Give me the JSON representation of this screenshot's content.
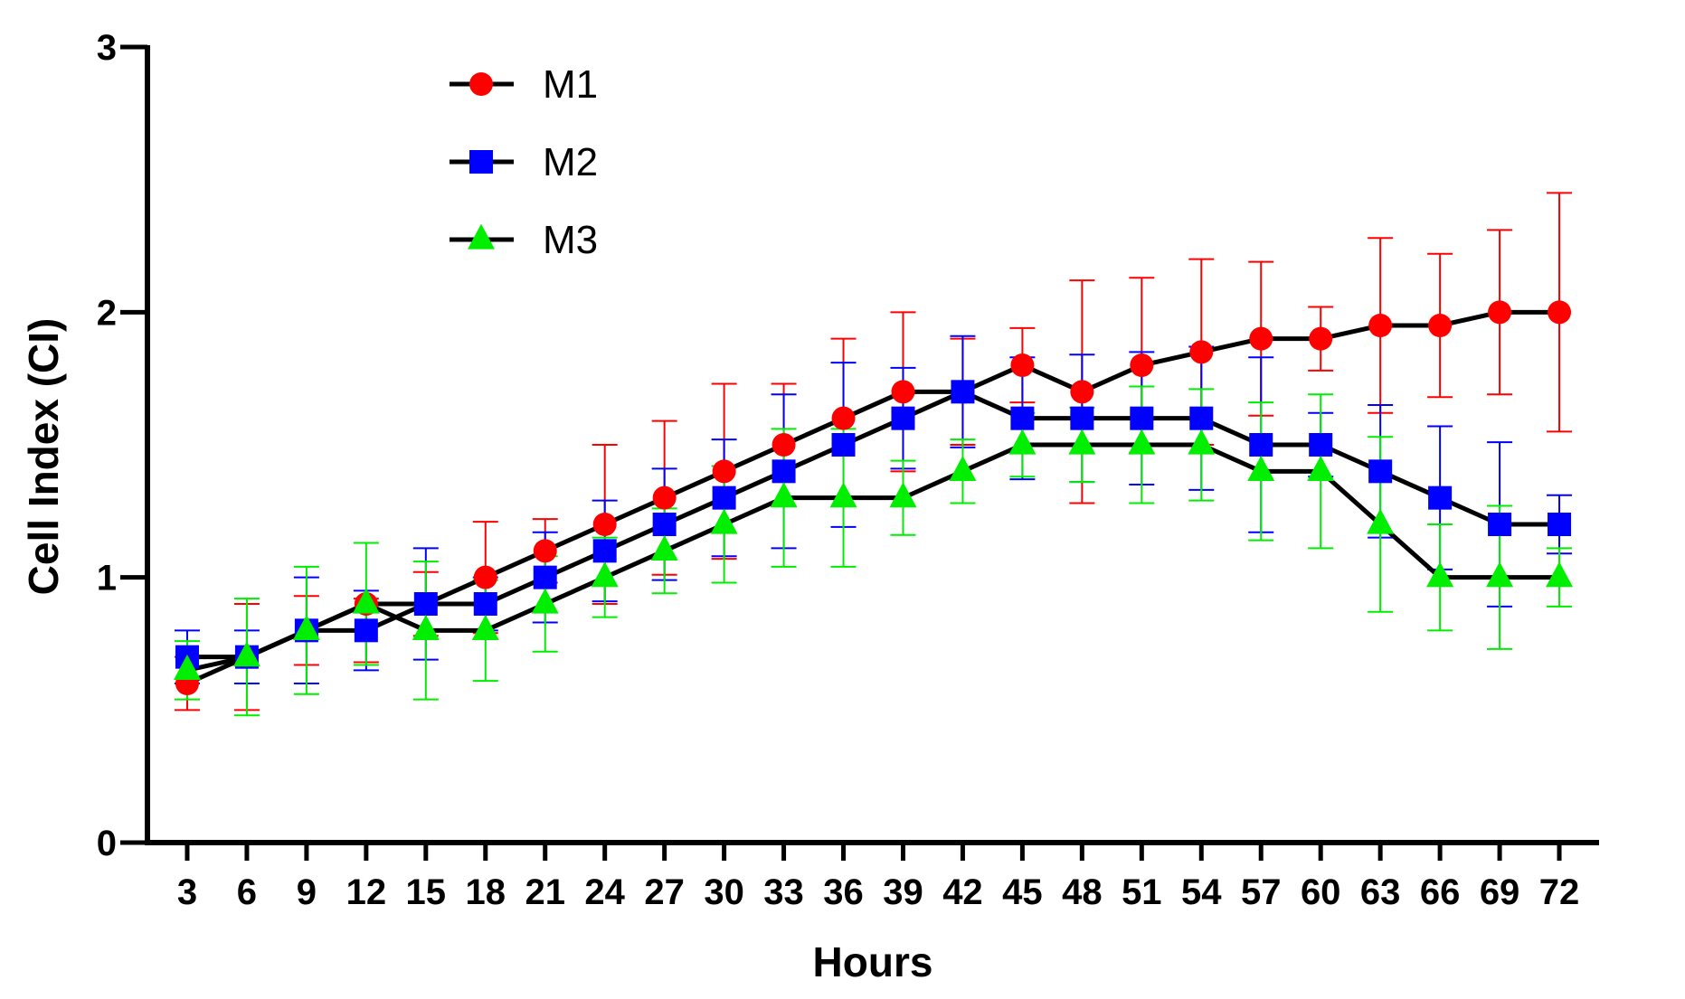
{
  "chart_data": {
    "type": "line",
    "title": "",
    "xlabel": "Hours",
    "ylabel": "Cell Index (CI)",
    "x": [
      3,
      6,
      9,
      12,
      15,
      18,
      21,
      24,
      27,
      30,
      33,
      36,
      39,
      42,
      45,
      48,
      51,
      54,
      57,
      60,
      63,
      66,
      69,
      72
    ],
    "xlim": [
      1,
      74
    ],
    "ylim": [
      0,
      3
    ],
    "yticks": [
      0,
      1,
      2,
      3
    ],
    "grid": false,
    "legend_position": "top-left",
    "series": [
      {
        "name": "M1",
        "color": "#ff0000",
        "marker": "circle",
        "values": [
          0.6,
          0.7,
          0.8,
          0.9,
          0.9,
          1.0,
          1.1,
          1.2,
          1.3,
          1.4,
          1.5,
          1.6,
          1.7,
          1.7,
          1.8,
          1.7,
          1.8,
          1.85,
          1.9,
          1.9,
          1.95,
          1.95,
          2.0,
          2.0
        ],
        "err_upper": [
          0.7,
          0.9,
          0.93,
          0.92,
          1.02,
          1.21,
          1.22,
          1.5,
          1.59,
          1.73,
          1.73,
          1.9,
          2.0,
          1.9,
          1.94,
          2.12,
          2.13,
          2.2,
          2.19,
          2.02,
          2.28,
          2.22,
          2.31,
          2.45
        ],
        "err_lower": [
          0.5,
          0.5,
          0.67,
          0.68,
          0.78,
          0.79,
          0.98,
          0.9,
          1.01,
          1.07,
          1.27,
          1.3,
          1.4,
          1.5,
          1.66,
          1.28,
          1.47,
          1.5,
          1.61,
          1.78,
          1.62,
          1.68,
          1.69,
          1.55
        ]
      },
      {
        "name": "M2",
        "color": "#0000ff",
        "marker": "square",
        "values": [
          0.7,
          0.7,
          0.8,
          0.8,
          0.9,
          0.9,
          1.0,
          1.1,
          1.2,
          1.3,
          1.4,
          1.5,
          1.6,
          1.7,
          1.6,
          1.6,
          1.6,
          1.6,
          1.5,
          1.5,
          1.4,
          1.3,
          1.2,
          1.2
        ],
        "err_upper": [
          0.8,
          0.8,
          1.0,
          0.95,
          1.11,
          1.0,
          1.17,
          1.29,
          1.41,
          1.52,
          1.69,
          1.81,
          1.79,
          1.91,
          1.83,
          1.84,
          1.85,
          1.87,
          1.83,
          1.62,
          1.65,
          1.57,
          1.51,
          1.31
        ],
        "err_lower": [
          0.6,
          0.6,
          0.6,
          0.65,
          0.69,
          0.8,
          0.83,
          0.91,
          0.99,
          1.08,
          1.11,
          1.19,
          1.41,
          1.49,
          1.37,
          1.36,
          1.35,
          1.33,
          1.17,
          1.38,
          1.15,
          1.03,
          0.89,
          1.09
        ]
      },
      {
        "name": "M3",
        "color": "#00ee00",
        "marker": "triangle",
        "values": [
          0.65,
          0.7,
          0.8,
          0.9,
          0.8,
          0.8,
          0.9,
          1.0,
          1.1,
          1.2,
          1.3,
          1.3,
          1.3,
          1.4,
          1.5,
          1.5,
          1.5,
          1.5,
          1.4,
          1.4,
          1.2,
          1.0,
          1.0,
          1.0
        ],
        "err_upper": [
          0.76,
          0.92,
          1.04,
          1.13,
          1.06,
          0.99,
          1.08,
          1.15,
          1.26,
          1.42,
          1.56,
          1.56,
          1.44,
          1.52,
          1.62,
          1.64,
          1.72,
          1.71,
          1.66,
          1.69,
          1.53,
          1.2,
          1.27,
          1.11
        ],
        "err_lower": [
          0.54,
          0.48,
          0.56,
          0.67,
          0.54,
          0.61,
          0.72,
          0.85,
          0.94,
          0.98,
          1.04,
          1.04,
          1.16,
          1.28,
          1.38,
          1.36,
          1.28,
          1.29,
          1.14,
          1.11,
          0.87,
          0.8,
          0.73,
          0.89
        ]
      }
    ]
  }
}
